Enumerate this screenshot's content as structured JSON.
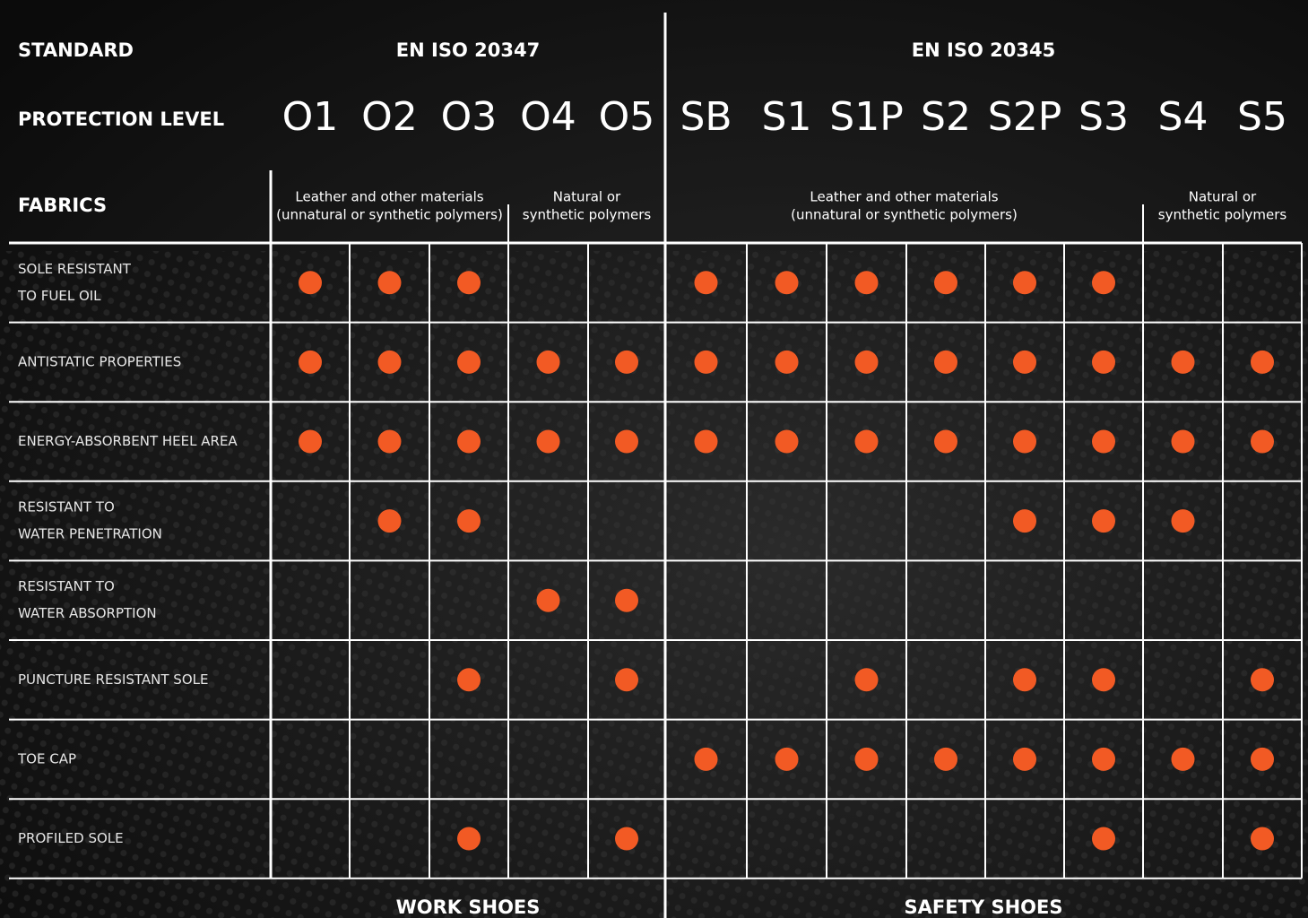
{
  "header": {
    "standard_label": "STANDARD",
    "protection_label": "PROTECTION LEVEL",
    "fabrics_label": "FABRICS",
    "standards": [
      {
        "name": "EN ISO 20347",
        "levels": [
          "O1",
          "O2",
          "O3",
          "O4",
          "O5"
        ],
        "fabrics": [
          {
            "lines": [
              "Leather and other materials",
              "(unnatural or synthetic polymers)"
            ],
            "span": 3
          },
          {
            "lines": [
              "Natural or",
              "synthetic polymers"
            ],
            "span": 2
          }
        ],
        "footer": "WORK SHOES"
      },
      {
        "name": "EN ISO 20345",
        "levels": [
          "SB",
          "S1",
          "S1P",
          "S2",
          "S2P",
          "S3",
          "S4",
          "S5"
        ],
        "fabrics": [
          {
            "lines": [
              "Leather and other materials",
              "(unnatural or synthetic polymers)"
            ],
            "span": 6
          },
          {
            "lines": [
              "Natural or",
              "synthetic polymers"
            ],
            "span": 2
          }
        ],
        "footer": "SAFETY SHOES"
      }
    ]
  },
  "table": {
    "rows": [
      {
        "lines": [
          "SOLE RESISTANT",
          "TO FUEL OIL"
        ],
        "cells": [
          true,
          true,
          true,
          false,
          false,
          true,
          true,
          true,
          true,
          true,
          true,
          false,
          false
        ]
      },
      {
        "lines": [
          "ANTISTATIC PROPERTIES"
        ],
        "cells": [
          true,
          true,
          true,
          true,
          true,
          true,
          true,
          true,
          true,
          true,
          true,
          true,
          true
        ]
      },
      {
        "lines": [
          "ENERGY-ABSORBENT HEEL AREA"
        ],
        "cells": [
          true,
          true,
          true,
          true,
          true,
          true,
          true,
          true,
          true,
          true,
          true,
          true,
          true
        ]
      },
      {
        "lines": [
          "RESISTANT TO",
          "WATER PENETRATION"
        ],
        "cells": [
          false,
          true,
          true,
          false,
          false,
          false,
          false,
          false,
          false,
          true,
          true,
          true,
          false
        ]
      },
      {
        "lines": [
          "RESISTANT TO",
          "WATER ABSORPTION"
        ],
        "cells": [
          false,
          false,
          false,
          true,
          true,
          false,
          false,
          false,
          false,
          false,
          false,
          false,
          false
        ]
      },
      {
        "lines": [
          "PUNCTURE RESISTANT SOLE"
        ],
        "cells": [
          false,
          false,
          true,
          false,
          true,
          false,
          false,
          true,
          false,
          true,
          true,
          false,
          true
        ]
      },
      {
        "lines": [
          "TOE CAP"
        ],
        "cells": [
          false,
          false,
          false,
          false,
          false,
          true,
          true,
          true,
          true,
          true,
          true,
          true,
          true
        ]
      },
      {
        "lines": [
          "PROFILED SOLE"
        ],
        "cells": [
          false,
          false,
          true,
          false,
          true,
          false,
          false,
          false,
          false,
          false,
          true,
          false,
          true
        ]
      }
    ]
  }
}
